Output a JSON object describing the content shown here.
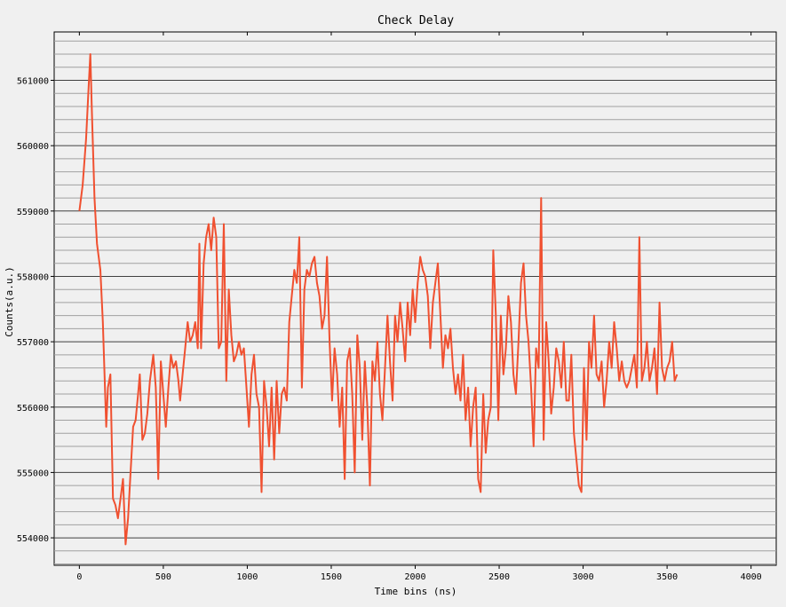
{
  "chart_data": {
    "type": "line",
    "title": "Check Delay",
    "xlabel": "Time bins (ns)",
    "ylabel": "Counts(a.u.)",
    "xlim": [
      -150,
      4150
    ],
    "ylim": [
      553580,
      561740
    ],
    "x_ticks": [
      0,
      500,
      1000,
      1500,
      2000,
      2500,
      3000,
      3500,
      4000
    ],
    "y_ticks": [
      554000,
      555000,
      556000,
      557000,
      558000,
      559000,
      560000,
      561000
    ],
    "grid": true,
    "legend": "none",
    "series": [
      {
        "color": "#f05030",
        "points": [
          [
            0,
            559000
          ],
          [
            20,
            559400
          ],
          [
            40,
            560100
          ],
          [
            55,
            560900
          ],
          [
            65,
            561400
          ],
          [
            75,
            560500
          ],
          [
            90,
            559200
          ],
          [
            105,
            558500
          ],
          [
            125,
            558100
          ],
          [
            140,
            557300
          ],
          [
            150,
            556500
          ],
          [
            160,
            555700
          ],
          [
            170,
            556300
          ],
          [
            185,
            556500
          ],
          [
            200,
            554600
          ],
          [
            215,
            554500
          ],
          [
            230,
            554300
          ],
          [
            245,
            554600
          ],
          [
            260,
            554900
          ],
          [
            275,
            553900
          ],
          [
            290,
            554300
          ],
          [
            305,
            555000
          ],
          [
            320,
            555700
          ],
          [
            335,
            555800
          ],
          [
            350,
            556200
          ],
          [
            360,
            556500
          ],
          [
            375,
            555500
          ],
          [
            390,
            555600
          ],
          [
            405,
            555900
          ],
          [
            420,
            556400
          ],
          [
            440,
            556800
          ],
          [
            455,
            556300
          ],
          [
            470,
            554900
          ],
          [
            485,
            556700
          ],
          [
            500,
            556200
          ],
          [
            515,
            555700
          ],
          [
            530,
            556300
          ],
          [
            545,
            556800
          ],
          [
            560,
            556600
          ],
          [
            575,
            556700
          ],
          [
            590,
            556400
          ],
          [
            600,
            556100
          ],
          [
            615,
            556500
          ],
          [
            630,
            556900
          ],
          [
            645,
            557300
          ],
          [
            660,
            557000
          ],
          [
            675,
            557100
          ],
          [
            690,
            557300
          ],
          [
            705,
            556900
          ],
          [
            715,
            558500
          ],
          [
            725,
            556900
          ],
          [
            740,
            558200
          ],
          [
            755,
            558600
          ],
          [
            770,
            558800
          ],
          [
            785,
            558400
          ],
          [
            800,
            558900
          ],
          [
            815,
            558600
          ],
          [
            830,
            556900
          ],
          [
            845,
            557000
          ],
          [
            860,
            558800
          ],
          [
            875,
            556400
          ],
          [
            890,
            557800
          ],
          [
            905,
            557100
          ],
          [
            920,
            556700
          ],
          [
            935,
            556800
          ],
          [
            950,
            557000
          ],
          [
            965,
            556800
          ],
          [
            980,
            556900
          ],
          [
            995,
            556300
          ],
          [
            1010,
            555700
          ],
          [
            1025,
            556500
          ],
          [
            1040,
            556800
          ],
          [
            1055,
            556200
          ],
          [
            1070,
            556000
          ],
          [
            1085,
            554700
          ],
          [
            1100,
            556400
          ],
          [
            1115,
            556000
          ],
          [
            1130,
            555400
          ],
          [
            1145,
            556300
          ],
          [
            1160,
            555200
          ],
          [
            1175,
            556400
          ],
          [
            1190,
            555600
          ],
          [
            1205,
            556200
          ],
          [
            1220,
            556300
          ],
          [
            1235,
            556100
          ],
          [
            1250,
            557300
          ],
          [
            1265,
            557700
          ],
          [
            1280,
            558100
          ],
          [
            1295,
            557900
          ],
          [
            1310,
            558600
          ],
          [
            1325,
            556300
          ],
          [
            1340,
            557800
          ],
          [
            1355,
            558100
          ],
          [
            1370,
            558000
          ],
          [
            1385,
            558200
          ],
          [
            1400,
            558300
          ],
          [
            1415,
            557900
          ],
          [
            1430,
            557700
          ],
          [
            1445,
            557200
          ],
          [
            1460,
            557400
          ],
          [
            1475,
            558300
          ],
          [
            1490,
            557000
          ],
          [
            1505,
            556100
          ],
          [
            1520,
            556900
          ],
          [
            1535,
            556500
          ],
          [
            1550,
            555700
          ],
          [
            1565,
            556300
          ],
          [
            1580,
            554900
          ],
          [
            1595,
            556700
          ],
          [
            1610,
            556900
          ],
          [
            1625,
            556200
          ],
          [
            1640,
            555000
          ],
          [
            1655,
            557100
          ],
          [
            1670,
            556600
          ],
          [
            1685,
            555500
          ],
          [
            1700,
            556700
          ],
          [
            1715,
            556000
          ],
          [
            1730,
            554800
          ],
          [
            1745,
            556700
          ],
          [
            1760,
            556400
          ],
          [
            1775,
            557000
          ],
          [
            1790,
            556200
          ],
          [
            1805,
            555800
          ],
          [
            1820,
            556600
          ],
          [
            1835,
            557400
          ],
          [
            1850,
            556700
          ],
          [
            1865,
            556100
          ],
          [
            1880,
            557400
          ],
          [
            1895,
            557000
          ],
          [
            1910,
            557600
          ],
          [
            1925,
            557200
          ],
          [
            1940,
            556700
          ],
          [
            1955,
            557600
          ],
          [
            1970,
            557100
          ],
          [
            1985,
            557800
          ],
          [
            2000,
            557300
          ],
          [
            2015,
            557900
          ],
          [
            2030,
            558300
          ],
          [
            2045,
            558100
          ],
          [
            2060,
            558000
          ],
          [
            2075,
            557700
          ],
          [
            2090,
            556900
          ],
          [
            2105,
            557600
          ],
          [
            2120,
            557900
          ],
          [
            2135,
            558200
          ],
          [
            2150,
            557400
          ],
          [
            2165,
            556600
          ],
          [
            2180,
            557100
          ],
          [
            2195,
            556900
          ],
          [
            2210,
            557200
          ],
          [
            2225,
            556600
          ],
          [
            2240,
            556200
          ],
          [
            2255,
            556500
          ],
          [
            2270,
            556100
          ],
          [
            2285,
            556800
          ],
          [
            2300,
            555800
          ],
          [
            2315,
            556300
          ],
          [
            2330,
            555400
          ],
          [
            2345,
            556000
          ],
          [
            2360,
            556300
          ],
          [
            2375,
            554900
          ],
          [
            2390,
            554700
          ],
          [
            2405,
            556200
          ],
          [
            2420,
            555300
          ],
          [
            2435,
            555800
          ],
          [
            2450,
            556000
          ],
          [
            2465,
            558400
          ],
          [
            2480,
            557400
          ],
          [
            2495,
            555800
          ],
          [
            2510,
            557400
          ],
          [
            2525,
            556500
          ],
          [
            2540,
            556900
          ],
          [
            2555,
            557700
          ],
          [
            2570,
            557300
          ],
          [
            2585,
            556500
          ],
          [
            2600,
            556200
          ],
          [
            2615,
            557000
          ],
          [
            2630,
            557900
          ],
          [
            2645,
            558200
          ],
          [
            2660,
            557400
          ],
          [
            2675,
            557000
          ],
          [
            2690,
            556300
          ],
          [
            2705,
            555400
          ],
          [
            2720,
            556900
          ],
          [
            2735,
            556600
          ],
          [
            2750,
            559200
          ],
          [
            2765,
            555500
          ],
          [
            2780,
            557300
          ],
          [
            2795,
            556700
          ],
          [
            2810,
            555900
          ],
          [
            2825,
            556300
          ],
          [
            2840,
            556900
          ],
          [
            2855,
            556700
          ],
          [
            2870,
            556300
          ],
          [
            2885,
            557000
          ],
          [
            2900,
            556100
          ],
          [
            2915,
            556100
          ],
          [
            2930,
            556800
          ],
          [
            2945,
            555600
          ],
          [
            2960,
            555200
          ],
          [
            2975,
            554800
          ],
          [
            2990,
            554700
          ],
          [
            3005,
            556600
          ],
          [
            3020,
            555500
          ],
          [
            3035,
            557000
          ],
          [
            3050,
            556600
          ],
          [
            3065,
            557400
          ],
          [
            3080,
            556500
          ],
          [
            3095,
            556400
          ],
          [
            3110,
            556700
          ],
          [
            3125,
            556000
          ],
          [
            3140,
            556400
          ],
          [
            3155,
            557000
          ],
          [
            3170,
            556600
          ],
          [
            3185,
            557300
          ],
          [
            3200,
            556900
          ],
          [
            3215,
            556400
          ],
          [
            3230,
            556700
          ],
          [
            3245,
            556400
          ],
          [
            3260,
            556300
          ],
          [
            3275,
            556400
          ],
          [
            3290,
            556600
          ],
          [
            3305,
            556800
          ],
          [
            3320,
            556300
          ],
          [
            3335,
            558600
          ],
          [
            3350,
            556400
          ],
          [
            3365,
            556600
          ],
          [
            3380,
            557000
          ],
          [
            3395,
            556400
          ],
          [
            3410,
            556600
          ],
          [
            3425,
            556900
          ],
          [
            3440,
            556200
          ],
          [
            3455,
            557600
          ],
          [
            3470,
            556600
          ],
          [
            3485,
            556400
          ],
          [
            3500,
            556600
          ],
          [
            3515,
            556700
          ],
          [
            3530,
            557000
          ],
          [
            3545,
            556400
          ],
          [
            3560,
            556500
          ]
        ]
      }
    ]
  }
}
